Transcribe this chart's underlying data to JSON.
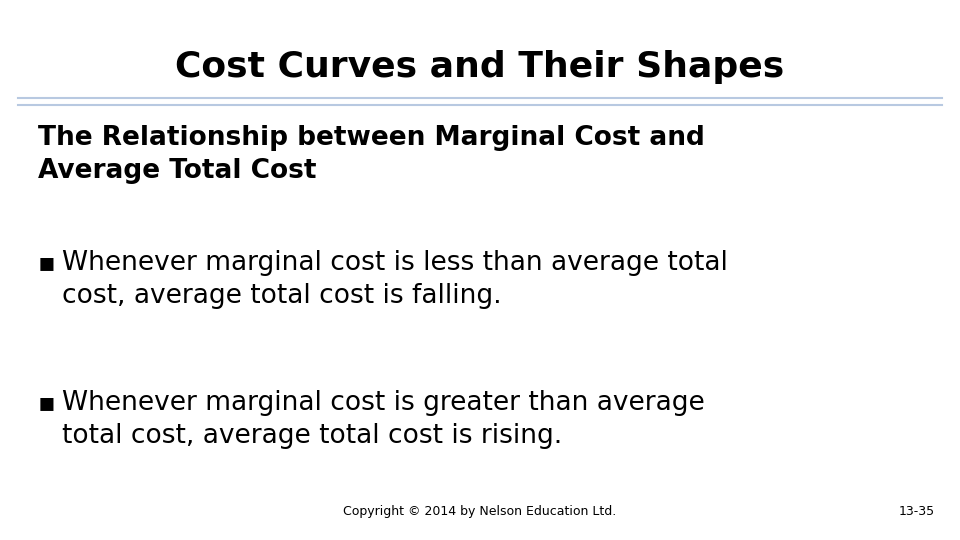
{
  "title": "Cost Curves and Their Shapes",
  "title_fontsize": 26,
  "title_fontweight": "bold",
  "title_color": "#000000",
  "separator_color": "#b8c9e1",
  "background_color": "#ffffff",
  "heading_text": "The Relationship between Marginal Cost and\nAverage Total Cost",
  "heading_fontsize": 19,
  "heading_fontweight": "bold",
  "bullet_char": "▪",
  "bullets": [
    "Whenever marginal cost is less than average total\ncost, average total cost is falling.",
    "Whenever marginal cost is greater than average\ntotal cost, average total cost is rising."
  ],
  "bullet_fontsize": 19,
  "bullet_color": "#000000",
  "copyright_text": "Copyright © 2014 by Nelson Education Ltd.",
  "copyright_fontsize": 9,
  "page_number": "13-35",
  "page_number_fontsize": 9
}
